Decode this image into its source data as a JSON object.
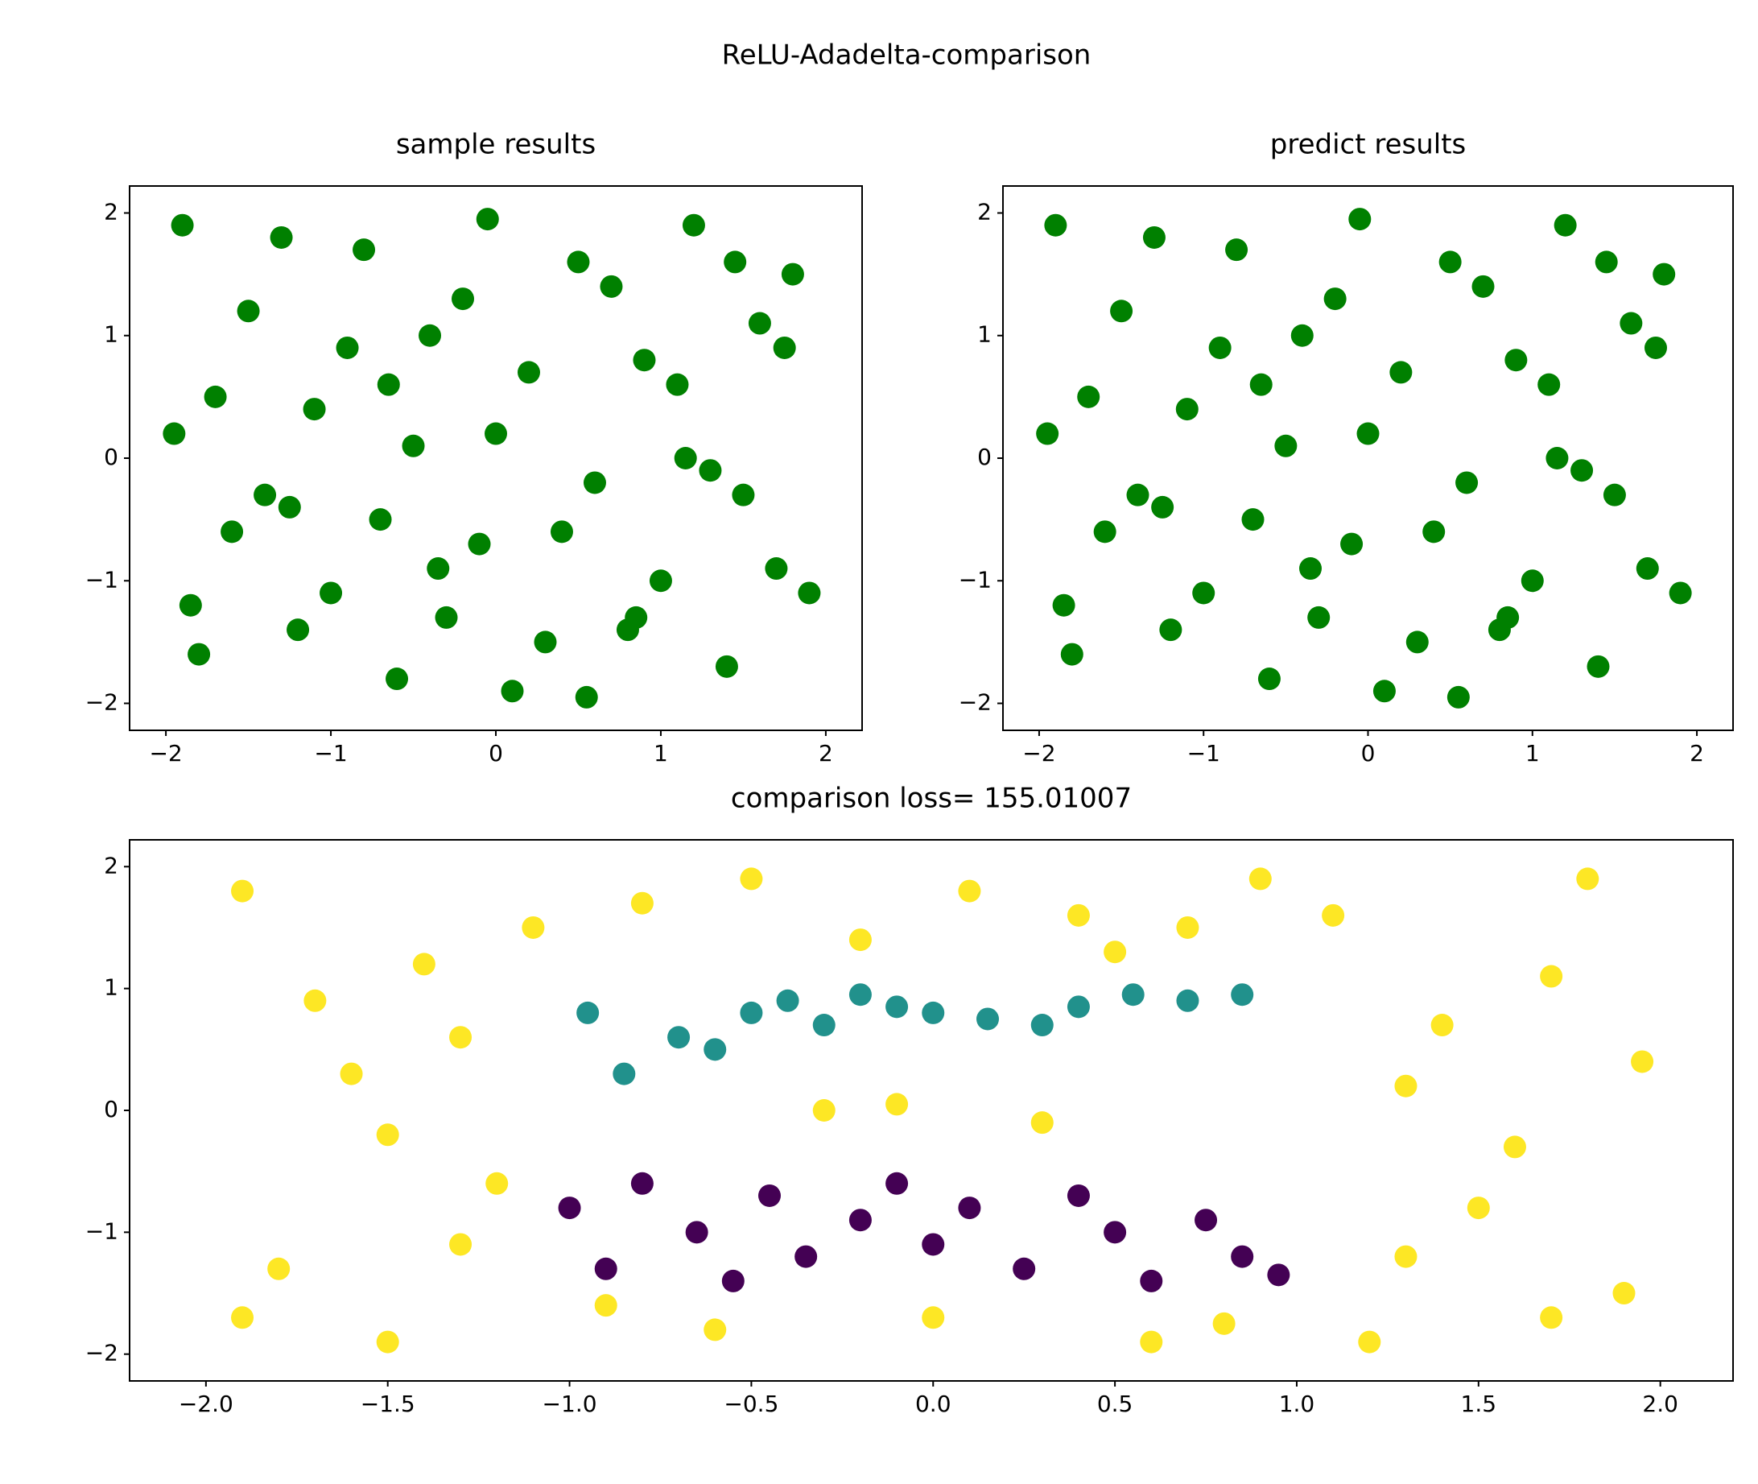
{
  "title": "ReLU-Adadelta-comparison",
  "chart_data": [
    {
      "type": "scatter",
      "title": "sample results",
      "xlim": [
        -2.22,
        2.22
      ],
      "ylim": [
        -2.22,
        2.22
      ],
      "xticks": [
        {
          "value": -2,
          "label": "−2"
        },
        {
          "value": -1,
          "label": "−1"
        },
        0,
        1,
        2
      ],
      "yticks": [
        {
          "value": -2,
          "label": "−2"
        },
        {
          "value": -1,
          "label": "−1"
        },
        0,
        1,
        2
      ],
      "series": [
        {
          "color": "#008000",
          "x": [
            -1.9,
            -1.5,
            -1.1,
            -0.7,
            -0.3,
            0.1,
            0.5,
            0.9,
            1.3,
            1.7,
            -1.8,
            -1.3,
            -0.9,
            -0.5,
            -0.1,
            0.3,
            0.7,
            1.1,
            1.5,
            1.9,
            -1.95,
            -1.6,
            -1.2,
            -0.8,
            -0.4,
            0.0,
            0.4,
            0.8,
            1.2,
            1.6,
            -1.7,
            -1.4,
            -1.0,
            -0.6,
            -0.2,
            0.2,
            0.6,
            1.0,
            1.4,
            1.8,
            -1.85,
            -1.25,
            -0.65,
            -0.05,
            0.55,
            1.15,
            1.75,
            -0.35,
            0.85,
            1.45
          ],
          "values": [
            1.9,
            1.2,
            0.4,
            -0.5,
            -1.3,
            -1.9,
            1.6,
            0.8,
            -0.1,
            -0.9,
            -1.6,
            1.8,
            0.9,
            0.1,
            -0.7,
            -1.5,
            1.4,
            0.6,
            -0.3,
            -1.1,
            0.2,
            -0.6,
            -1.4,
            1.7,
            1.0,
            0.2,
            -0.6,
            -1.4,
            1.9,
            1.1,
            0.5,
            -0.3,
            -1.1,
            -1.8,
            1.3,
            0.7,
            -0.2,
            -1.0,
            -1.7,
            1.5,
            -1.2,
            -0.4,
            0.6,
            1.95,
            -1.95,
            0.0,
            0.9,
            -0.9,
            -1.3,
            1.6
          ]
        }
      ]
    },
    {
      "type": "scatter",
      "title": "predict results",
      "xlim": [
        -2.22,
        2.22
      ],
      "ylim": [
        -2.22,
        2.22
      ],
      "xticks": [
        {
          "value": -2,
          "label": "−2"
        },
        {
          "value": -1,
          "label": "−1"
        },
        0,
        1,
        2
      ],
      "yticks": [
        {
          "value": -2,
          "label": "−2"
        },
        {
          "value": -1,
          "label": "−1"
        },
        0,
        1,
        2
      ],
      "series": [
        {
          "color": "#008000",
          "x": [
            -1.9,
            -1.5,
            -1.1,
            -0.7,
            -0.3,
            0.1,
            0.5,
            0.9,
            1.3,
            1.7,
            -1.8,
            -1.3,
            -0.9,
            -0.5,
            -0.1,
            0.3,
            0.7,
            1.1,
            1.5,
            1.9,
            -1.95,
            -1.6,
            -1.2,
            -0.8,
            -0.4,
            0.0,
            0.4,
            0.8,
            1.2,
            1.6,
            -1.7,
            -1.4,
            -1.0,
            -0.6,
            -0.2,
            0.2,
            0.6,
            1.0,
            1.4,
            1.8,
            -1.85,
            -1.25,
            -0.65,
            -0.05,
            0.55,
            1.15,
            1.75,
            -0.35,
            0.85,
            1.45
          ],
          "values": [
            1.9,
            1.2,
            0.4,
            -0.5,
            -1.3,
            -1.9,
            1.6,
            0.8,
            -0.1,
            -0.9,
            -1.6,
            1.8,
            0.9,
            0.1,
            -0.7,
            -1.5,
            1.4,
            0.6,
            -0.3,
            -1.1,
            0.2,
            -0.6,
            -1.4,
            1.7,
            1.0,
            0.2,
            -0.6,
            -1.4,
            1.9,
            1.1,
            0.5,
            -0.3,
            -1.1,
            -1.8,
            1.3,
            0.7,
            -0.2,
            -1.0,
            -1.7,
            1.5,
            -1.2,
            -0.4,
            0.6,
            1.95,
            -1.95,
            0.0,
            0.9,
            -0.9,
            -1.3,
            1.6
          ]
        }
      ]
    },
    {
      "type": "scatter",
      "title": "comparison loss= 155.01007",
      "xlim": [
        -2.21,
        2.2
      ],
      "ylim": [
        -2.22,
        2.22
      ],
      "xticks": [
        {
          "value": -2,
          "label": "−2.0"
        },
        {
          "value": -1.5,
          "label": "−1.5"
        },
        {
          "value": -1,
          "label": "−1.0"
        },
        {
          "value": -0.5,
          "label": "−0.5"
        },
        {
          "value": 0,
          "label": "0.0"
        },
        0.5,
        {
          "value": 1,
          "label": "1.0"
        },
        1.5,
        {
          "value": 2,
          "label": "2.0"
        }
      ],
      "yticks": [
        {
          "value": -2,
          "label": "−2"
        },
        {
          "value": -1,
          "label": "−1"
        },
        0,
        1,
        2
      ],
      "series": [
        {
          "color": "#fde725",
          "x": [
            -1.9,
            -1.7,
            -1.5,
            -1.3,
            -1.1,
            -1.9,
            -1.6,
            -1.4,
            -1.2,
            -1.8,
            -1.5,
            -1.3,
            1.1,
            1.3,
            1.5,
            1.7,
            1.9,
            1.2,
            1.4,
            1.6,
            1.8,
            1.95,
            1.3,
            1.7,
            -0.8,
            -0.5,
            -0.2,
            0.1,
            0.4,
            0.7,
            0.9,
            -0.6,
            0.0,
            0.6,
            -0.9,
            -0.3,
            0.3,
            0.8,
            -0.1,
            0.5
          ],
          "values": [
            1.8,
            0.9,
            -0.2,
            -1.1,
            1.5,
            -1.7,
            0.3,
            1.2,
            -0.6,
            -1.3,
            -1.9,
            0.6,
            1.6,
            0.2,
            -0.8,
            1.1,
            -1.5,
            -1.9,
            0.7,
            -0.3,
            1.9,
            0.4,
            -1.2,
            -1.7,
            1.7,
            1.9,
            1.4,
            1.8,
            1.6,
            1.5,
            1.9,
            -1.8,
            -1.7,
            -1.9,
            -1.6,
            0.0,
            -0.1,
            -1.75,
            0.05,
            1.3
          ]
        },
        {
          "color": "#21918c",
          "x": [
            -0.95,
            -0.85,
            -0.7,
            -0.6,
            -0.5,
            -0.4,
            -0.3,
            -0.2,
            -0.1,
            0.0,
            0.15,
            0.3,
            0.4,
            0.55,
            0.7,
            0.85
          ],
          "values": [
            0.8,
            0.3,
            0.6,
            0.5,
            0.8,
            0.9,
            0.7,
            0.95,
            0.85,
            0.8,
            0.75,
            0.7,
            0.85,
            0.95,
            0.9,
            0.95
          ]
        },
        {
          "color": "#440154",
          "x": [
            -1.0,
            -0.9,
            -0.8,
            -0.65,
            -0.55,
            -0.45,
            -0.35,
            -0.2,
            -0.1,
            0.0,
            0.1,
            0.25,
            0.4,
            0.5,
            0.6,
            0.75,
            0.85,
            0.95
          ],
          "values": [
            -0.8,
            -1.3,
            -0.6,
            -1.0,
            -1.4,
            -0.7,
            -1.2,
            -0.9,
            -0.6,
            -1.1,
            -0.8,
            -1.3,
            -0.7,
            -1.0,
            -1.4,
            -0.9,
            -1.2,
            -1.35
          ]
        }
      ]
    }
  ]
}
